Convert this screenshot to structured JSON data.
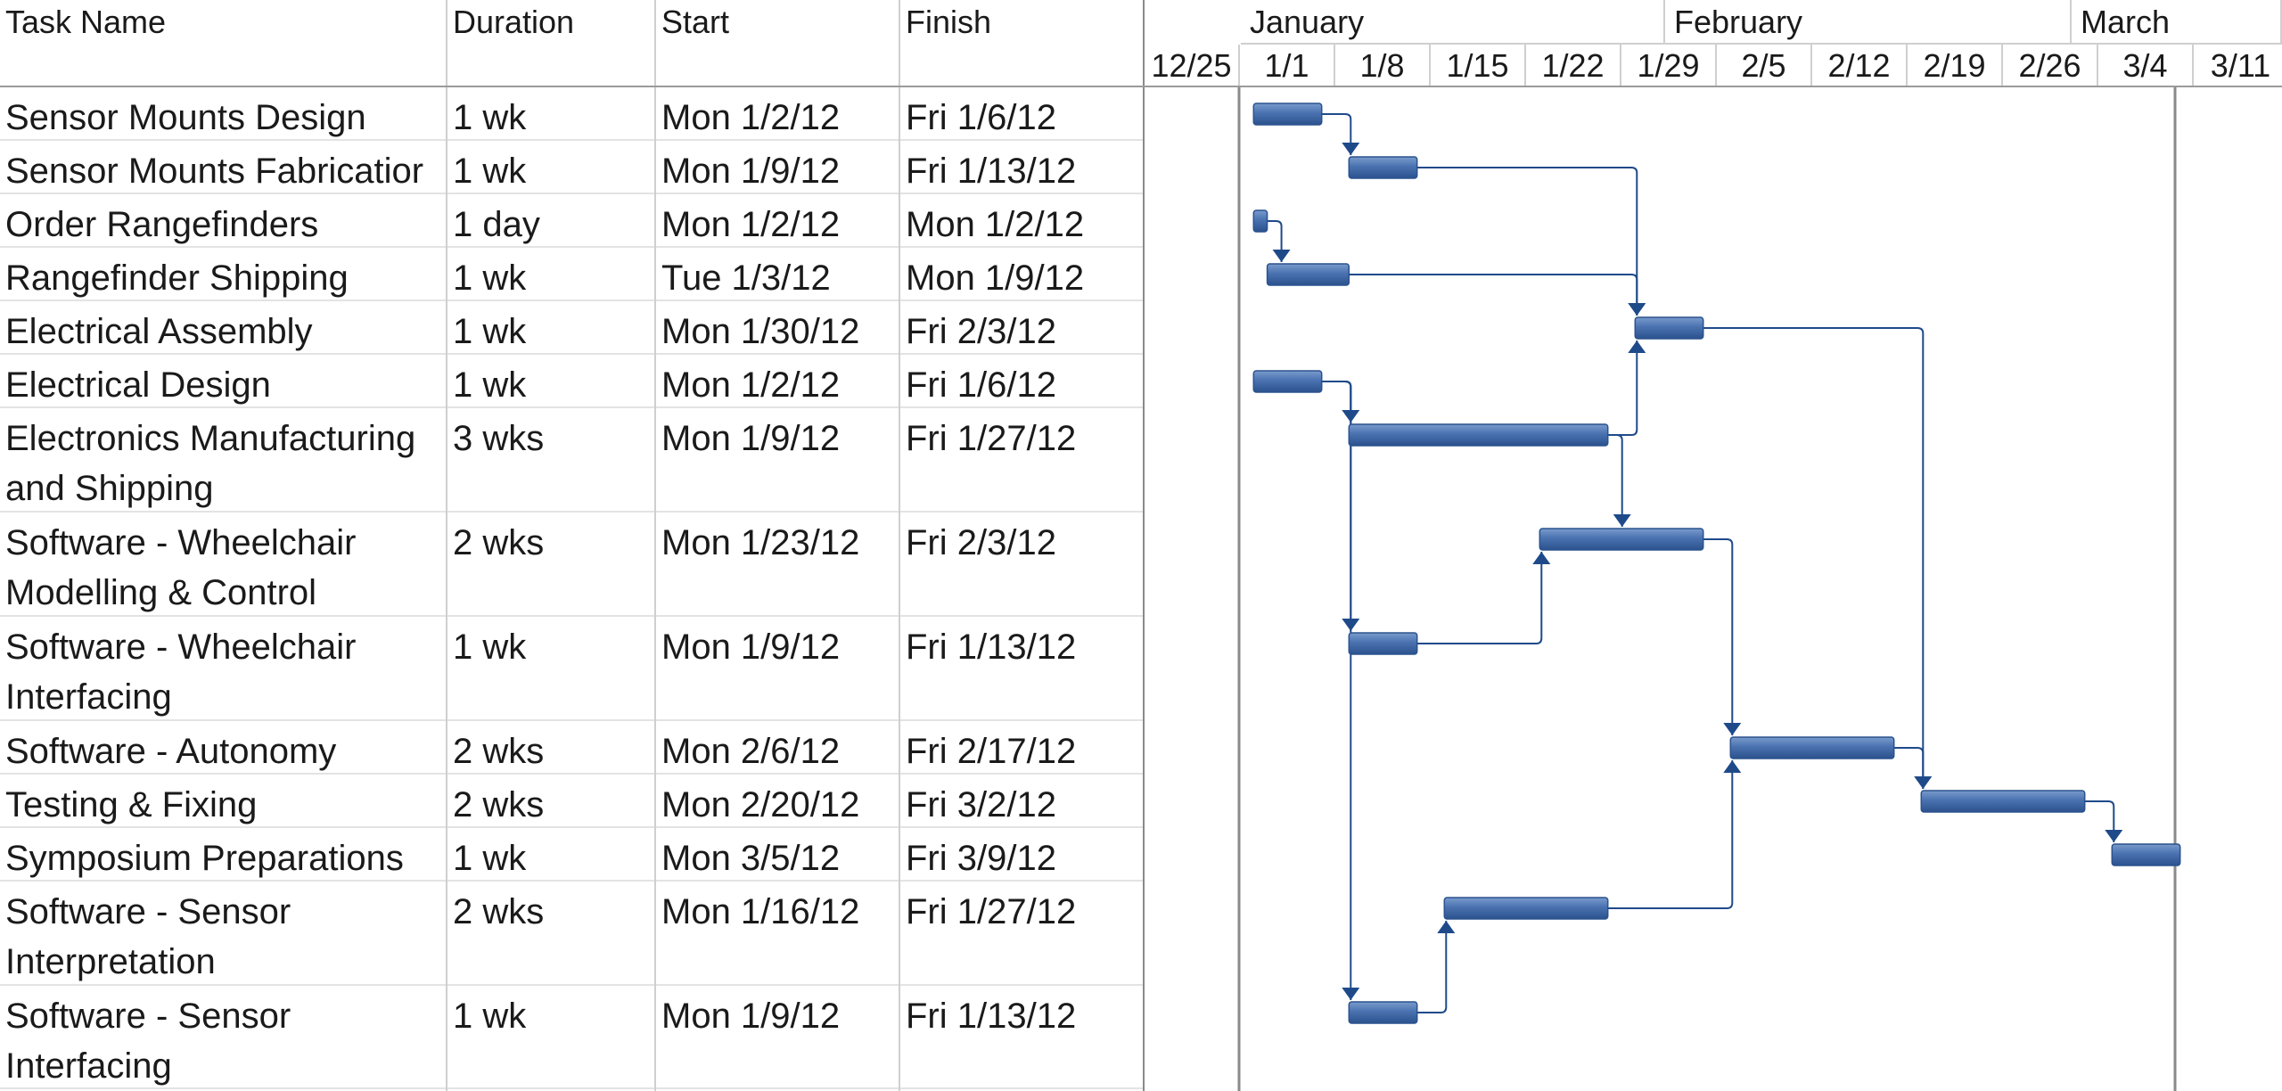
{
  "columns": {
    "name": "Task Name",
    "duration": "Duration",
    "start": "Start",
    "finish": "Finish"
  },
  "timescale": {
    "months": [
      "January",
      "February",
      "March"
    ],
    "weeks": [
      "12/25",
      "1/1",
      "1/8",
      "1/15",
      "1/22",
      "1/29",
      "2/5",
      "2/12",
      "2/19",
      "2/26",
      "3/4",
      "3/11"
    ]
  },
  "colors": {
    "bar": "#4a72b0",
    "bar_edge": "#2b528d",
    "link": "#1f4a8a"
  },
  "chart_data": {
    "type": "gantt",
    "tasks": [
      {
        "name": "Sensor Mounts Design",
        "duration": "1 wk",
        "start": "Mon 1/2/12",
        "finish": "Fri 1/6/12",
        "bar_start": "2012-01-02",
        "bar_end": "2012-01-07"
      },
      {
        "name": "Sensor Mounts Fabricatior",
        "duration": "1 wk",
        "start": "Mon 1/9/12",
        "finish": "Fri 1/13/12",
        "bar_start": "2012-01-09",
        "bar_end": "2012-01-14"
      },
      {
        "name": "Order Rangefinders",
        "duration": "1 day",
        "start": "Mon 1/2/12",
        "finish": "Mon 1/2/12",
        "bar_start": "2012-01-02",
        "bar_end": "2012-01-03"
      },
      {
        "name": "Rangefinder Shipping",
        "duration": "1 wk",
        "start": "Tue 1/3/12",
        "finish": "Mon 1/9/12",
        "bar_start": "2012-01-03",
        "bar_end": "2012-01-09"
      },
      {
        "name": "Electrical Assembly",
        "duration": "1 wk",
        "start": "Mon 1/30/12",
        "finish": "Fri 2/3/12",
        "bar_start": "2012-01-30",
        "bar_end": "2012-02-04"
      },
      {
        "name": "Electrical Design",
        "duration": "1 wk",
        "start": "Mon 1/2/12",
        "finish": "Fri 1/6/12",
        "bar_start": "2012-01-02",
        "bar_end": "2012-01-07"
      },
      {
        "name": "Electronics Manufacturing and Shipping",
        "duration": "3 wks",
        "start": "Mon 1/9/12",
        "finish": "Fri 1/27/12",
        "bar_start": "2012-01-09",
        "bar_end": "2012-01-28"
      },
      {
        "name": "Software - Wheelchair Modelling & Control",
        "duration": "2 wks",
        "start": "Mon 1/23/12",
        "finish": "Fri 2/3/12",
        "bar_start": "2012-01-23",
        "bar_end": "2012-02-04"
      },
      {
        "name": "Software - Wheelchair Interfacing",
        "duration": "1 wk",
        "start": "Mon 1/9/12",
        "finish": "Fri 1/13/12",
        "bar_start": "2012-01-09",
        "bar_end": "2012-01-14"
      },
      {
        "name": "Software - Autonomy",
        "duration": "2 wks",
        "start": "Mon 2/6/12",
        "finish": "Fri 2/17/12",
        "bar_start": "2012-02-06",
        "bar_end": "2012-02-18"
      },
      {
        "name": "Testing & Fixing",
        "duration": "2 wks",
        "start": "Mon 2/20/12",
        "finish": "Fri 3/2/12",
        "bar_start": "2012-02-20",
        "bar_end": "2012-03-03"
      },
      {
        "name": "Symposium Preparations",
        "duration": "1 wk",
        "start": "Mon 3/5/12",
        "finish": "Fri 3/9/12",
        "bar_start": "2012-03-05",
        "bar_end": "2012-03-10"
      },
      {
        "name": "Software - Sensor Interpretation",
        "duration": "2 wks",
        "start": "Mon 1/16/12",
        "finish": "Fri 1/27/12",
        "bar_start": "2012-01-16",
        "bar_end": "2012-01-28"
      },
      {
        "name": "Software - Sensor Interfacing",
        "duration": "1 wk",
        "start": "Mon 1/9/12",
        "finish": "Fri 1/13/12",
        "bar_start": "2012-01-09",
        "bar_end": "2012-01-14"
      }
    ],
    "dependencies": [
      {
        "from": 0,
        "to": 1
      },
      {
        "from": 1,
        "to": 4
      },
      {
        "from": 2,
        "to": 3
      },
      {
        "from": 3,
        "to": 4
      },
      {
        "from": 5,
        "to": 6
      },
      {
        "from": 5,
        "to": 8
      },
      {
        "from": 5,
        "to": 13
      },
      {
        "from": 6,
        "to": 4
      },
      {
        "from": 6,
        "to": 7
      },
      {
        "from": 8,
        "to": 7
      },
      {
        "from": 7,
        "to": 9
      },
      {
        "from": 12,
        "to": 9
      },
      {
        "from": 13,
        "to": 12
      },
      {
        "from": 4,
        "to": 10
      },
      {
        "from": 9,
        "to": 10
      },
      {
        "from": 10,
        "to": 11
      }
    ]
  }
}
